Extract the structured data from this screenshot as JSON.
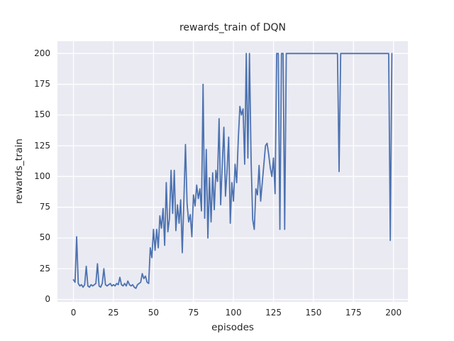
{
  "figure": {
    "title": "rewards_train of DQN",
    "xlabel": "episodes",
    "ylabel": "rewards_train"
  },
  "chart_data": {
    "type": "line",
    "title": "rewards_train of DQN",
    "xlabel": "episodes",
    "ylabel": "rewards_train",
    "x_ticks": [
      0,
      25,
      50,
      75,
      100,
      125,
      150,
      175,
      200
    ],
    "y_ticks": [
      0,
      25,
      50,
      75,
      100,
      125,
      150,
      175,
      200
    ],
    "xlim": [
      -10,
      209
    ],
    "ylim": [
      -2,
      210
    ],
    "grid": true,
    "legend": false,
    "colors": {
      "line": "#4C72B0",
      "axes_background": "#EAEAF2",
      "grid": "#FFFFFF",
      "figure_background": "#FFFFFF",
      "text": "#262626"
    },
    "series": [
      {
        "name": "rewards_train",
        "color": "#4C72B0",
        "x_start": 0,
        "x_step": 1,
        "values": [
          16,
          14,
          51,
          13,
          11,
          12,
          10,
          12,
          27,
          11,
          10,
          12,
          11,
          12,
          13,
          29,
          11,
          10,
          13,
          25,
          12,
          11,
          12,
          13,
          11,
          12,
          11,
          13,
          12,
          18,
          12,
          11,
          13,
          11,
          15,
          12,
          11,
          12,
          10,
          9,
          12,
          13,
          14,
          21,
          17,
          19,
          14,
          13,
          42,
          34,
          57,
          40,
          57,
          42,
          68,
          58,
          74,
          44,
          95,
          55,
          66,
          105,
          70,
          105,
          56,
          77,
          62,
          81,
          38,
          80,
          126,
          78,
          63,
          69,
          51,
          85,
          76,
          93,
          82,
          90,
          72,
          175,
          66,
          122,
          50,
          99,
          63,
          103,
          73,
          105,
          96,
          147,
          77,
          110,
          140,
          84,
          105,
          132,
          62,
          95,
          80,
          110,
          95,
          130,
          157,
          150,
          155,
          110,
          200,
          115,
          200,
          114,
          65,
          57,
          90,
          85,
          109,
          80,
          95,
          110,
          125,
          127,
          118,
          107,
          100,
          115,
          86,
          200,
          200,
          57,
          200,
          200,
          57,
          200,
          200,
          200,
          200,
          200,
          200,
          200,
          200,
          200,
          200,
          200,
          200,
          200,
          200,
          200,
          200,
          200,
          200,
          200,
          200,
          200,
          200,
          200,
          200,
          200,
          200,
          200,
          200,
          200,
          200,
          200,
          200,
          200,
          104,
          200,
          200,
          200,
          200,
          200,
          200,
          200,
          200,
          200,
          200,
          200,
          200,
          200,
          200,
          200,
          200,
          200,
          200,
          200,
          200,
          200,
          200,
          200,
          200,
          200,
          200,
          200,
          200,
          200,
          200,
          200,
          48,
          200
        ]
      }
    ]
  }
}
